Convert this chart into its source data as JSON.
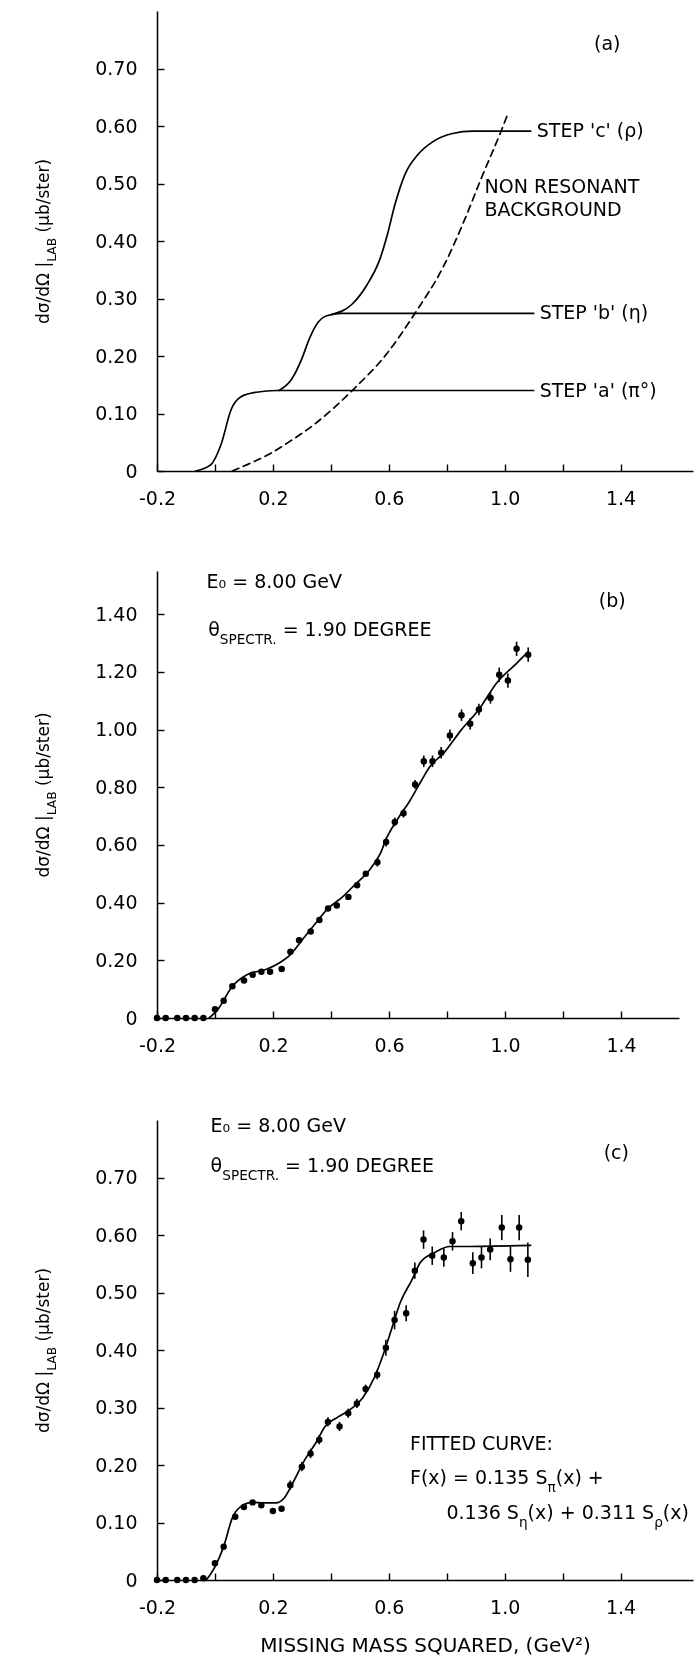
{
  "chart_data": [
    {
      "type": "line",
      "annotations": [
        "(a)"
      ],
      "ylabel": "dσ/dΩ |$_{LAB}$ (μb/ster)",
      "xlim": [
        -0.2,
        1.65
      ],
      "xticks": [
        -0.2,
        {
          "value": 0,
          "label": null
        },
        0.2,
        {
          "value": 0.4,
          "label": null
        },
        0.6,
        {
          "value": 0.8,
          "label": null
        },
        {
          "value": 1,
          "label": "1.0"
        },
        {
          "value": 1.2,
          "label": null
        },
        1.4
      ],
      "ylim": [
        0,
        0.8
      ],
      "yticks": [
        {
          "value": 0,
          "label": "0"
        },
        {
          "value": 0.1,
          "label": "0.10"
        },
        {
          "value": 0.2,
          "label": "0.20"
        },
        {
          "value": 0.3,
          "label": "0.30"
        },
        {
          "value": 0.4,
          "label": "0.40"
        },
        {
          "value": 0.5,
          "label": "0.50"
        },
        {
          "value": 0.6,
          "label": "0.60"
        },
        {
          "value": 0.7,
          "label": "0.70"
        }
      ],
      "line_style": "solid",
      "series": [
        {
          "name": "STEP 'c' (ρ)",
          "color": "#000000",
          "x": [
            0.403,
            0.473,
            0.525,
            0.569,
            0.595,
            0.621,
            0.656,
            0.7,
            0.75,
            0.82,
            0.89,
            1.09
          ],
          "values": [
            0.272,
            0.29,
            0.324,
            0.368,
            0.411,
            0.463,
            0.516,
            0.55,
            0.572,
            0.587,
            0.591,
            0.591
          ]
        },
        {
          "name": "STEP 'b' (η)",
          "color": "#000000",
          "x": [
            0.221,
            0.264,
            0.299,
            0.325,
            0.351,
            0.386,
            0.438,
            1.1
          ],
          "values": [
            0.14,
            0.159,
            0.194,
            0.229,
            0.255,
            0.27,
            0.274,
            0.274
          ]
        },
        {
          "name": "STEP 'a' (π°)",
          "color": "#000000",
          "x": [
            -0.066,
            -0.014,
            0.021,
            0.056,
            0.09,
            0.143,
            0.212,
            1.1
          ],
          "values": [
            0,
            0.011,
            0.046,
            0.107,
            0.129,
            0.137,
            0.14,
            0.14
          ]
        },
        {
          "name": "NON RESONANT BACKGROUND",
          "color": "#000000",
          "line_style": "dashed",
          "x": [
            0.06,
            0.12,
            0.19,
            0.26,
            0.34,
            0.48,
            0.59,
            0.69,
            0.79,
            0.86,
            0.92,
            0.99,
            1.01
          ],
          "values": [
            0,
            0.013,
            0.03,
            0.052,
            0.08,
            0.143,
            0.202,
            0.274,
            0.357,
            0.435,
            0.51,
            0.594,
            0.62
          ]
        }
      ]
    },
    {
      "type": "scatter",
      "annotations": [
        "E₀ = 8.00 GeV",
        "θ$_{SPECTR.}$ = 1.90 DEGREE",
        "(b)"
      ],
      "ylabel": "dσ/dΩ |$_{LAB}$ (μb/ster)",
      "xlim": [
        -0.2,
        1.6
      ],
      "xticks": [
        -0.2,
        {
          "value": 0,
          "label": null
        },
        0.2,
        {
          "value": 0.4,
          "label": null
        },
        0.6,
        {
          "value": 0.8,
          "label": null
        },
        {
          "value": 1,
          "label": "1.0"
        },
        {
          "value": 1.2,
          "label": null
        },
        1.4
      ],
      "ylim": [
        0,
        1.55
      ],
      "yticks": [
        {
          "value": 0,
          "label": "0"
        },
        {
          "value": 0.2,
          "label": "0.20"
        },
        {
          "value": 0.4,
          "label": "0.40"
        },
        {
          "value": 0.6,
          "label": "0.60"
        },
        {
          "value": 0.8,
          "label": "0.80"
        },
        {
          "value": 1,
          "label": "1.00"
        },
        {
          "value": 1.2,
          "label": "1.20"
        },
        {
          "value": 1.4,
          "label": "1.40"
        }
      ],
      "series": [
        {
          "type": "scatter",
          "color": "#000000",
          "marker": "circle",
          "x": [
            -0.2,
            -0.17,
            -0.13,
            -0.1,
            -0.07,
            -0.04,
            0.0,
            0.03,
            0.06,
            0.1,
            0.13,
            0.16,
            0.19,
            0.23,
            0.26,
            0.29,
            0.33,
            0.36,
            0.39,
            0.42,
            0.46,
            0.49,
            0.52,
            0.56,
            0.59,
            0.62,
            0.65,
            0.69,
            0.72,
            0.75,
            0.78,
            0.81,
            0.85,
            0.88,
            0.91,
            0.95,
            0.98,
            1.01,
            1.04,
            1.08
          ],
          "values": [
            0,
            0,
            0,
            0,
            0,
            0,
            0.03,
            0.06,
            0.11,
            0.13,
            0.15,
            0.16,
            0.16,
            0.17,
            0.23,
            0.27,
            0.3,
            0.34,
            0.38,
            0.39,
            0.42,
            0.46,
            0.5,
            0.54,
            0.61,
            0.68,
            0.71,
            0.81,
            0.89,
            0.89,
            0.92,
            0.98,
            1.05,
            1.02,
            1.07,
            1.11,
            1.19,
            1.17,
            1.28,
            1.26
          ],
          "errors": [
            null,
            null,
            null,
            null,
            null,
            null,
            null,
            null,
            null,
            null,
            null,
            null,
            null,
            null,
            null,
            null,
            null,
            null,
            null,
            null,
            null,
            null,
            null,
            0.015,
            0.015,
            0.015,
            0.015,
            0.015,
            0.02,
            0.02,
            0.02,
            0.02,
            0.02,
            0.02,
            0.02,
            0.02,
            0.025,
            0.025,
            0.025,
            0.025
          ]
        },
        {
          "type": "line",
          "color": "#000000",
          "x": [
            -0.02,
            0.01,
            0.06,
            0.11,
            0.18,
            0.22,
            0.26,
            0.3,
            0.34,
            0.39,
            0.44,
            0.48,
            0.53,
            0.57,
            0.59,
            0.63,
            0.67,
            0.71,
            0.74,
            0.79,
            0.85,
            0.91,
            0.97,
            1.04,
            1.08
          ],
          "values": [
            0,
            0.03,
            0.11,
            0.15,
            0.17,
            0.19,
            0.22,
            0.27,
            0.32,
            0.38,
            0.42,
            0.46,
            0.51,
            0.57,
            0.62,
            0.69,
            0.75,
            0.82,
            0.87,
            0.92,
            1.0,
            1.07,
            1.16,
            1.23,
            1.27
          ]
        }
      ]
    },
    {
      "type": "scatter",
      "annotations": [
        "E₀ = 8.00 GeV",
        "θ$_{SPECTR.}$ = 1.90 DEGREE",
        "(c)",
        "FITTED CURVE:",
        "F(x) = 0.135 S$_{π}$(x) +",
        "0.136 S$_{η}$(x) + 0.311 S$_{ρ}$(x)"
      ],
      "xlabel": "MISSING MASS SQUARED, (GeV²)",
      "ylabel": "dσ/dΩ |$_{LAB}$ (μb/ster)",
      "xlim": [
        -0.2,
        1.65
      ],
      "xticks": [
        -0.2,
        {
          "value": 0,
          "label": null
        },
        0.2,
        {
          "value": 0.4,
          "label": null
        },
        0.6,
        {
          "value": 0.8,
          "label": null
        },
        {
          "value": 1,
          "label": "1.0"
        },
        {
          "value": 1.2,
          "label": null
        },
        1.4
      ],
      "ylim": [
        0,
        0.8
      ],
      "yticks": [
        {
          "value": 0,
          "label": "0"
        },
        {
          "value": 0.1,
          "label": "0.10"
        },
        {
          "value": 0.2,
          "label": "0.20"
        },
        {
          "value": 0.3,
          "label": "0.30"
        },
        {
          "value": 0.4,
          "label": "0.40"
        },
        {
          "value": 0.5,
          "label": "0.50"
        },
        {
          "value": 0.6,
          "label": "0.60"
        },
        {
          "value": 0.7,
          "label": "0.70"
        }
      ],
      "series": [
        {
          "type": "scatter",
          "color": "#000000",
          "marker": "circle",
          "x": [
            -0.2,
            -0.17,
            -0.13,
            -0.1,
            -0.07,
            -0.04,
            0.0,
            0.03,
            0.07,
            0.1,
            0.13,
            0.16,
            0.2,
            0.23,
            0.26,
            0.3,
            0.33,
            0.36,
            0.39,
            0.43,
            0.46,
            0.49,
            0.52,
            0.56,
            0.59,
            0.62,
            0.66,
            0.69,
            0.72,
            0.75,
            0.79,
            0.82,
            0.85,
            0.89,
            0.92,
            0.95,
            0.99,
            1.02,
            1.05,
            1.08
          ],
          "values": [
            0,
            0,
            0,
            0,
            0,
            0.003,
            0.029,
            0.058,
            0.11,
            0.127,
            0.135,
            0.13,
            0.12,
            0.124,
            0.165,
            0.197,
            0.22,
            0.244,
            0.275,
            0.267,
            0.29,
            0.307,
            0.332,
            0.357,
            0.404,
            0.452,
            0.464,
            0.538,
            0.592,
            0.564,
            0.561,
            0.589,
            0.624,
            0.551,
            0.561,
            0.575,
            0.613,
            0.558,
            0.613,
            0.557
          ],
          "errors": [
            null,
            null,
            null,
            null,
            null,
            null,
            null,
            null,
            null,
            null,
            null,
            null,
            null,
            null,
            0.008,
            0.008,
            0.008,
            0.008,
            0.008,
            0.008,
            0.008,
            0.008,
            0.008,
            0.008,
            0.014,
            0.016,
            0.014,
            0.014,
            0.016,
            0.016,
            0.016,
            0.016,
            0.016,
            0.019,
            0.019,
            0.019,
            0.022,
            0.022,
            0.022,
            0.03
          ]
        },
        {
          "type": "line",
          "color": "#000000",
          "x": [
            -0.03,
            0.0,
            0.03,
            0.06,
            0.09,
            0.13,
            0.17,
            0.21,
            0.24,
            0.27,
            0.31,
            0.35,
            0.38,
            0.42,
            0.46,
            0.51,
            0.55,
            0.58,
            0.61,
            0.64,
            0.68,
            0.71,
            0.76,
            0.81,
            0.84,
            1.09
          ],
          "values": [
            0,
            0.023,
            0.058,
            0.108,
            0.128,
            0.135,
            0.134,
            0.134,
            0.143,
            0.17,
            0.209,
            0.24,
            0.267,
            0.282,
            0.294,
            0.317,
            0.352,
            0.391,
            0.437,
            0.483,
            0.522,
            0.553,
            0.57,
            0.58,
            0.58,
            0.582
          ]
        }
      ]
    }
  ]
}
